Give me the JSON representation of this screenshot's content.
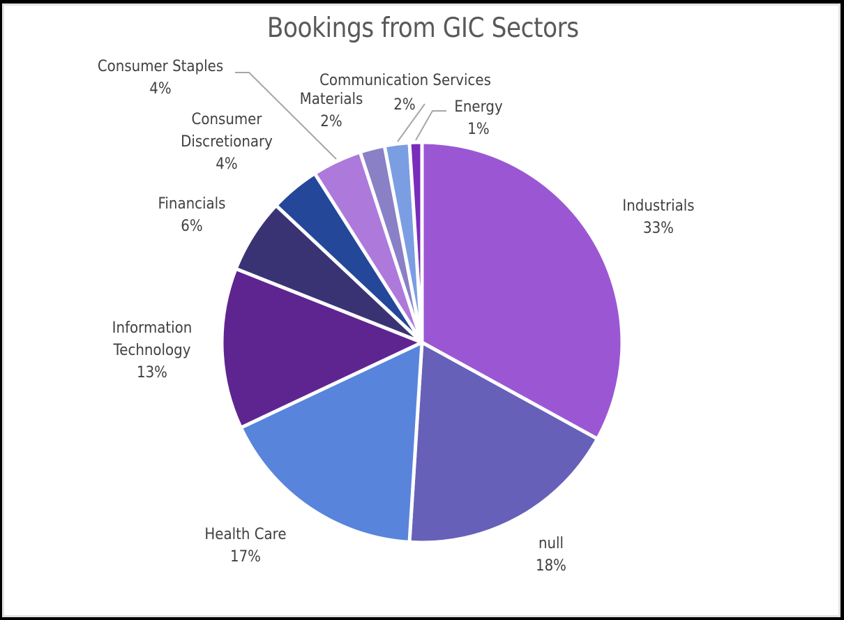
{
  "chart_data": {
    "type": "pie",
    "title": "Bookings from GIC Sectors",
    "start_angle_deg": 0,
    "direction": "clockwise",
    "legend": "none (data labels with category name and percentage)",
    "slices": [
      {
        "label": "Industrials",
        "value": 33,
        "display": "33%",
        "color": "#9B57D3"
      },
      {
        "label": "null",
        "value": 18,
        "display": "18%",
        "color": "#6760B9"
      },
      {
        "label": "Health Care",
        "value": 17,
        "display": "17%",
        "color": "#5884DB"
      },
      {
        "label": "Information Technology",
        "value": 13,
        "display": "13%",
        "color": "#5E2590"
      },
      {
        "label": "Financials",
        "value": 6,
        "display": "6%",
        "color": "#3A3373"
      },
      {
        "label": "Consumer Discretionary",
        "value": 4,
        "display": "4%",
        "color": "#24479A"
      },
      {
        "label": "Consumer Staples",
        "value": 4,
        "display": "4%",
        "color": "#AD79DB"
      },
      {
        "label": "Materials",
        "value": 2,
        "display": "2%",
        "color": "#8980C6"
      },
      {
        "label": "Communication Services",
        "value": 2,
        "display": "2%",
        "color": "#7B9DE2"
      },
      {
        "label": "Energy",
        "value": 1,
        "display": "1%",
        "color": "#7A2CBB"
      }
    ]
  },
  "labels": {
    "industrials": {
      "name": "Industrials",
      "pct": "33%"
    },
    "null": {
      "name": "null",
      "pct": "18%"
    },
    "health_care": {
      "name": "Health Care",
      "pct": "17%"
    },
    "it": {
      "line1": "Information",
      "line2": "Technology",
      "pct": "13%"
    },
    "financials": {
      "name": "Financials",
      "pct": "6%"
    },
    "consumer_discretionary": {
      "line1": "Consumer",
      "line2": "Discretionary",
      "pct": "4%"
    },
    "consumer_staples": {
      "name": "Consumer Staples",
      "pct": "4%"
    },
    "materials": {
      "name": "Materials",
      "pct": "2%"
    },
    "communication_services": {
      "name": "Communication Services",
      "pct": "2%"
    },
    "energy": {
      "name": "Energy",
      "pct": "1%"
    }
  },
  "colors": {
    "title": "#595959",
    "label_text": "#404040",
    "leader_line": "#A6A6A6",
    "slice_border": "#FFFFFF"
  }
}
